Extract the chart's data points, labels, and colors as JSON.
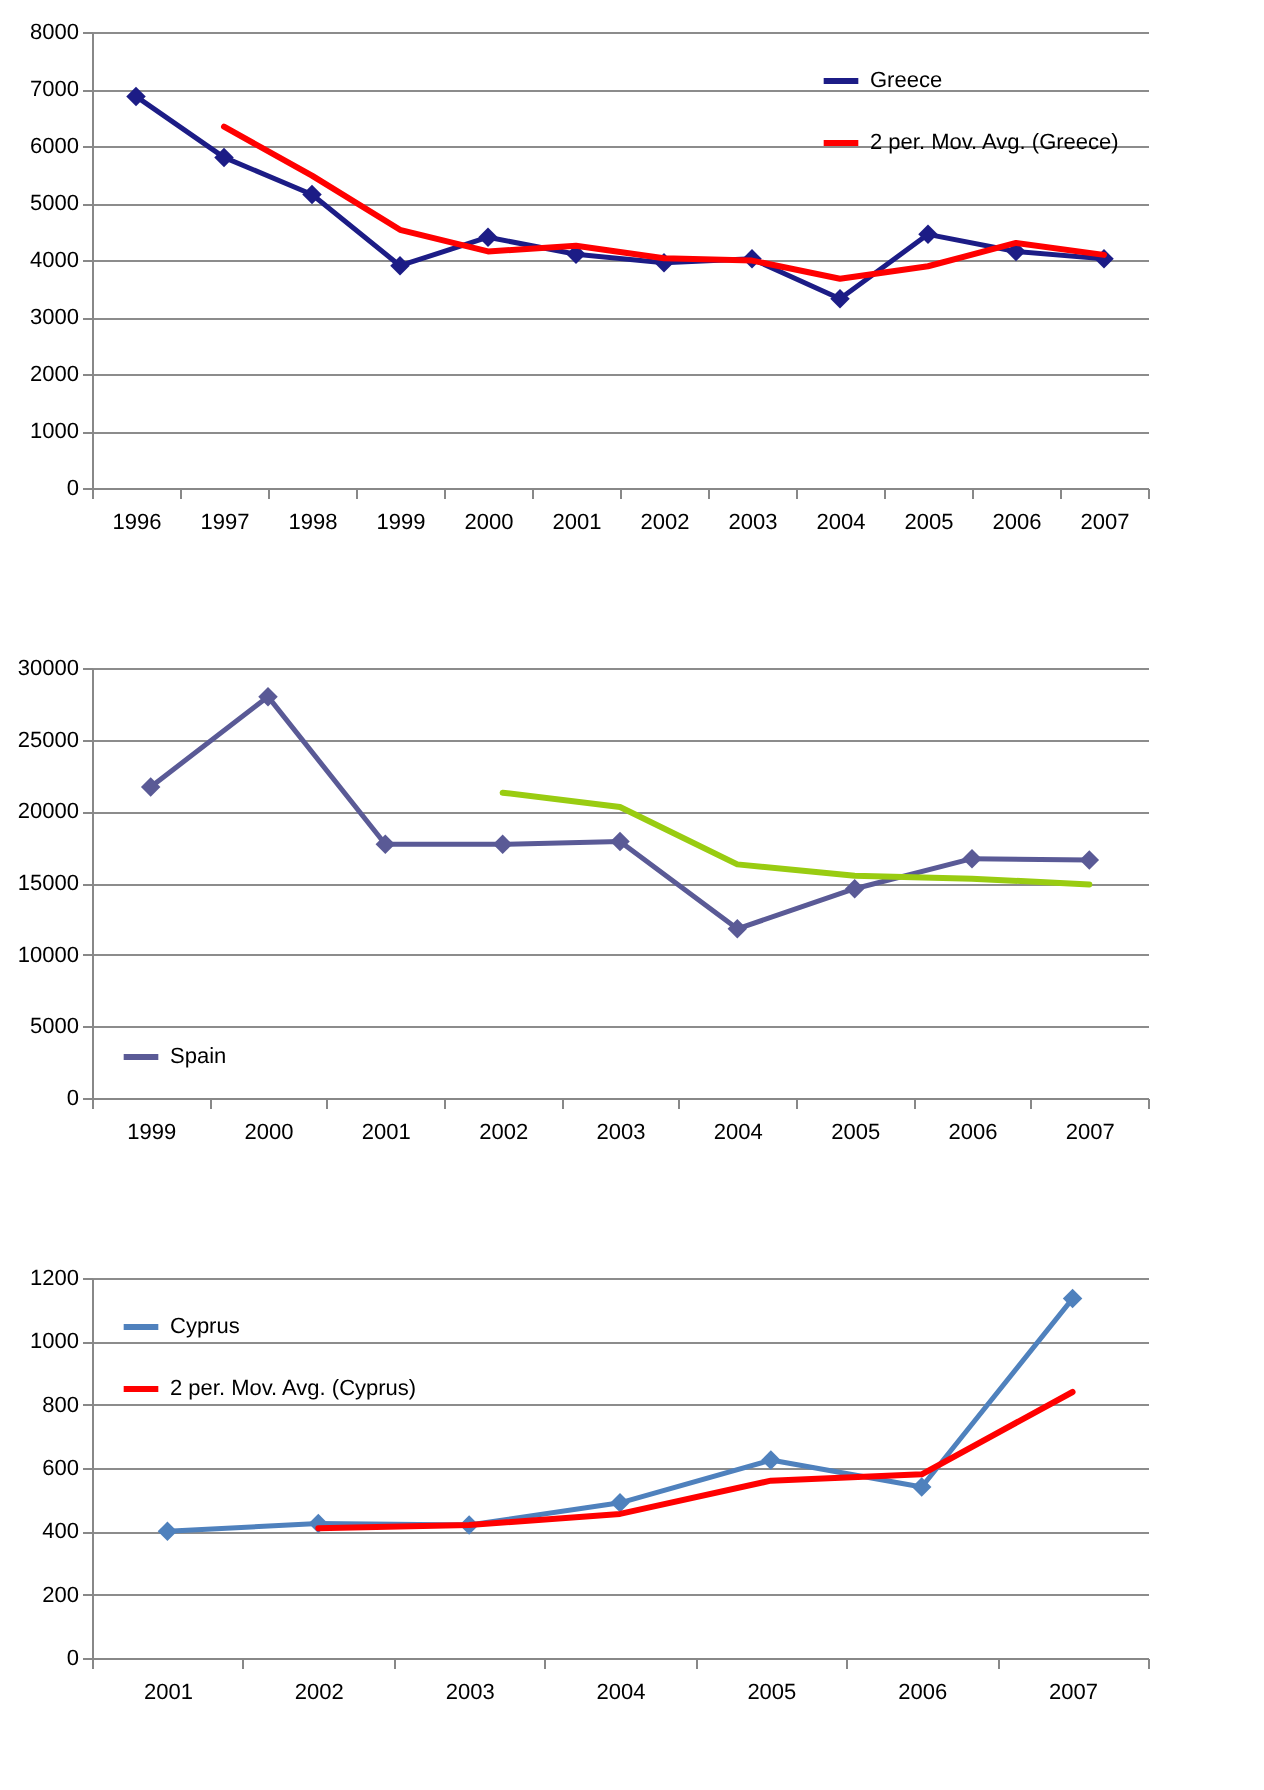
{
  "chart_data": [
    {
      "type": "line",
      "categories": [
        "1996",
        "1997",
        "1998",
        "1999",
        "2000",
        "2001",
        "2002",
        "2003",
        "2004",
        "2005",
        "2006",
        "2007"
      ],
      "ylim": [
        0,
        8000
      ],
      "yticks": [
        0,
        1000,
        2000,
        3000,
        4000,
        5000,
        6000,
        7000,
        8000
      ],
      "grid": "y",
      "legend": "top right",
      "series": [
        {
          "name": "Greece",
          "color": "#1c1c86",
          "marker": "diamond",
          "values": [
            6870,
            5800,
            5150,
            3900,
            4400,
            4100,
            3950,
            4020,
            3320,
            4450,
            4150,
            4020
          ]
        },
        {
          "name": "2 per. Mov. Avg. (Greece)",
          "color": "#ff0000",
          "marker": "none",
          "values": [
            null,
            6340,
            5480,
            4530,
            4150,
            4250,
            4030,
            3990,
            3670,
            3890,
            4300,
            4090
          ]
        }
      ]
    },
    {
      "type": "line",
      "categories": [
        "1999",
        "2000",
        "2001",
        "2002",
        "2003",
        "2004",
        "2005",
        "2006",
        "2007"
      ],
      "ylim": [
        0,
        30000
      ],
      "yticks": [
        0,
        5000,
        10000,
        15000,
        20000,
        25000,
        30000
      ],
      "grid": "y",
      "legend": "bottom left",
      "series": [
        {
          "name": "Spain",
          "color": "#5a5a96",
          "marker": "diamond",
          "values": [
            21700,
            28000,
            17700,
            17700,
            17900,
            11800,
            14600,
            16700,
            16600
          ]
        },
        {
          "color": "#99cc11",
          "marker": "none",
          "values": [
            null,
            null,
            null,
            21300,
            20300,
            16300,
            15500,
            15300,
            14900
          ]
        }
      ]
    },
    {
      "type": "line",
      "categories": [
        "2001",
        "2002",
        "2003",
        "2004",
        "2005",
        "2006",
        "2007"
      ],
      "ylim": [
        0,
        1200
      ],
      "yticks": [
        0,
        200,
        400,
        600,
        800,
        1000,
        1200
      ],
      "grid": "y",
      "legend": "top left",
      "series": [
        {
          "name": "Cyprus",
          "color": "#4f81bd",
          "marker": "diamond",
          "values": [
            400,
            425,
            420,
            490,
            625,
            540,
            1135
          ]
        },
        {
          "name": "2 per. Mov. Avg. (Cyprus)",
          "color": "#ff0000",
          "marker": "none",
          "values": [
            null,
            410,
            420,
            455,
            560,
            580,
            840
          ]
        }
      ]
    }
  ]
}
